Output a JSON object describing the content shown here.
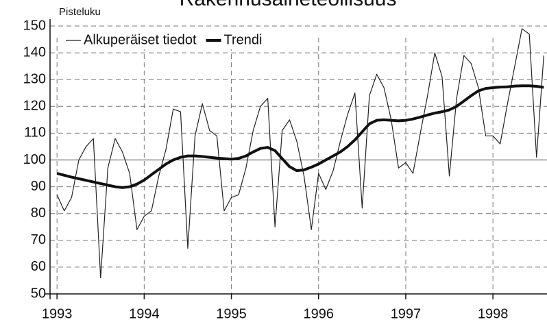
{
  "chart_data": {
    "type": "line",
    "title": "Rakennusaineteollisuus",
    "ylabel": "Pisteluku",
    "x": [
      1993,
      1993.083,
      1993.167,
      1993.25,
      1993.333,
      1993.417,
      1993.5,
      1993.583,
      1993.667,
      1993.75,
      1993.833,
      1993.917,
      1994,
      1994.083,
      1994.167,
      1994.25,
      1994.333,
      1994.417,
      1994.5,
      1994.583,
      1994.667,
      1994.75,
      1994.833,
      1994.917,
      1995,
      1995.083,
      1995.167,
      1995.25,
      1995.333,
      1995.417,
      1995.5,
      1995.583,
      1995.667,
      1995.75,
      1995.833,
      1995.917,
      1996,
      1996.083,
      1996.167,
      1996.25,
      1996.333,
      1996.417,
      1996.5,
      1996.583,
      1996.667,
      1996.75,
      1996.833,
      1996.917,
      1997,
      1997.083,
      1997.167,
      1997.25,
      1997.333,
      1997.417,
      1997.5,
      1997.583,
      1997.667,
      1997.75,
      1997.833,
      1997.917,
      1998,
      1998.083,
      1998.167,
      1998.25,
      1998.333,
      1998.417,
      1998.5,
      1998.583
    ],
    "series": [
      {
        "name": "Alkuperäiset tiedot",
        "color": "#222222",
        "width": 1.2,
        "values": [
          87,
          81,
          86,
          100,
          105,
          108,
          56,
          97,
          108,
          103,
          95,
          74,
          79,
          81,
          94,
          104,
          119,
          118,
          67,
          109,
          121,
          111,
          109,
          81,
          86,
          87,
          97,
          111,
          120,
          123,
          75,
          111,
          115,
          107,
          94,
          74,
          95,
          89,
          96,
          107,
          117,
          125,
          82,
          124,
          132,
          127,
          115,
          97,
          99,
          95,
          110,
          124,
          140,
          131,
          94,
          123,
          139,
          136,
          127,
          109,
          109,
          106,
          121,
          135,
          149,
          147,
          101,
          139
        ]
      },
      {
        "name": "Trendi",
        "color": "#111111",
        "width": 4,
        "values": [
          95,
          94.3,
          93.6,
          93,
          92.4,
          91.8,
          91.2,
          90.6,
          90,
          89.7,
          90,
          91,
          92.5,
          94.5,
          96.5,
          98.5,
          100,
          101,
          101.5,
          101.5,
          101.3,
          101,
          100.7,
          100.5,
          100.3,
          100.6,
          101.5,
          103,
          104.3,
          104.7,
          103.5,
          100.5,
          97.5,
          96,
          96.3,
          97.3,
          98.5,
          100,
          101.5,
          103,
          105,
          107.5,
          110.5,
          113.5,
          114.8,
          115,
          114.8,
          114.6,
          114.8,
          115.3,
          116,
          116.8,
          117.5,
          118,
          118.7,
          120,
          122,
          124,
          125.8,
          126.7,
          127,
          127.2,
          127.3,
          127.6,
          127.7,
          127.7,
          127.5,
          127.1
        ]
      }
    ],
    "xlim": [
      1992.92,
      1998.62
    ],
    "xticks": [
      1993,
      1994,
      1995,
      1996,
      1997,
      1998
    ],
    "ylim": [
      50,
      150
    ],
    "yticks": [
      50,
      60,
      70,
      80,
      90,
      100,
      110,
      120,
      130,
      140,
      150
    ],
    "reference_line": 100,
    "grid": true,
    "legend": "upper left"
  }
}
